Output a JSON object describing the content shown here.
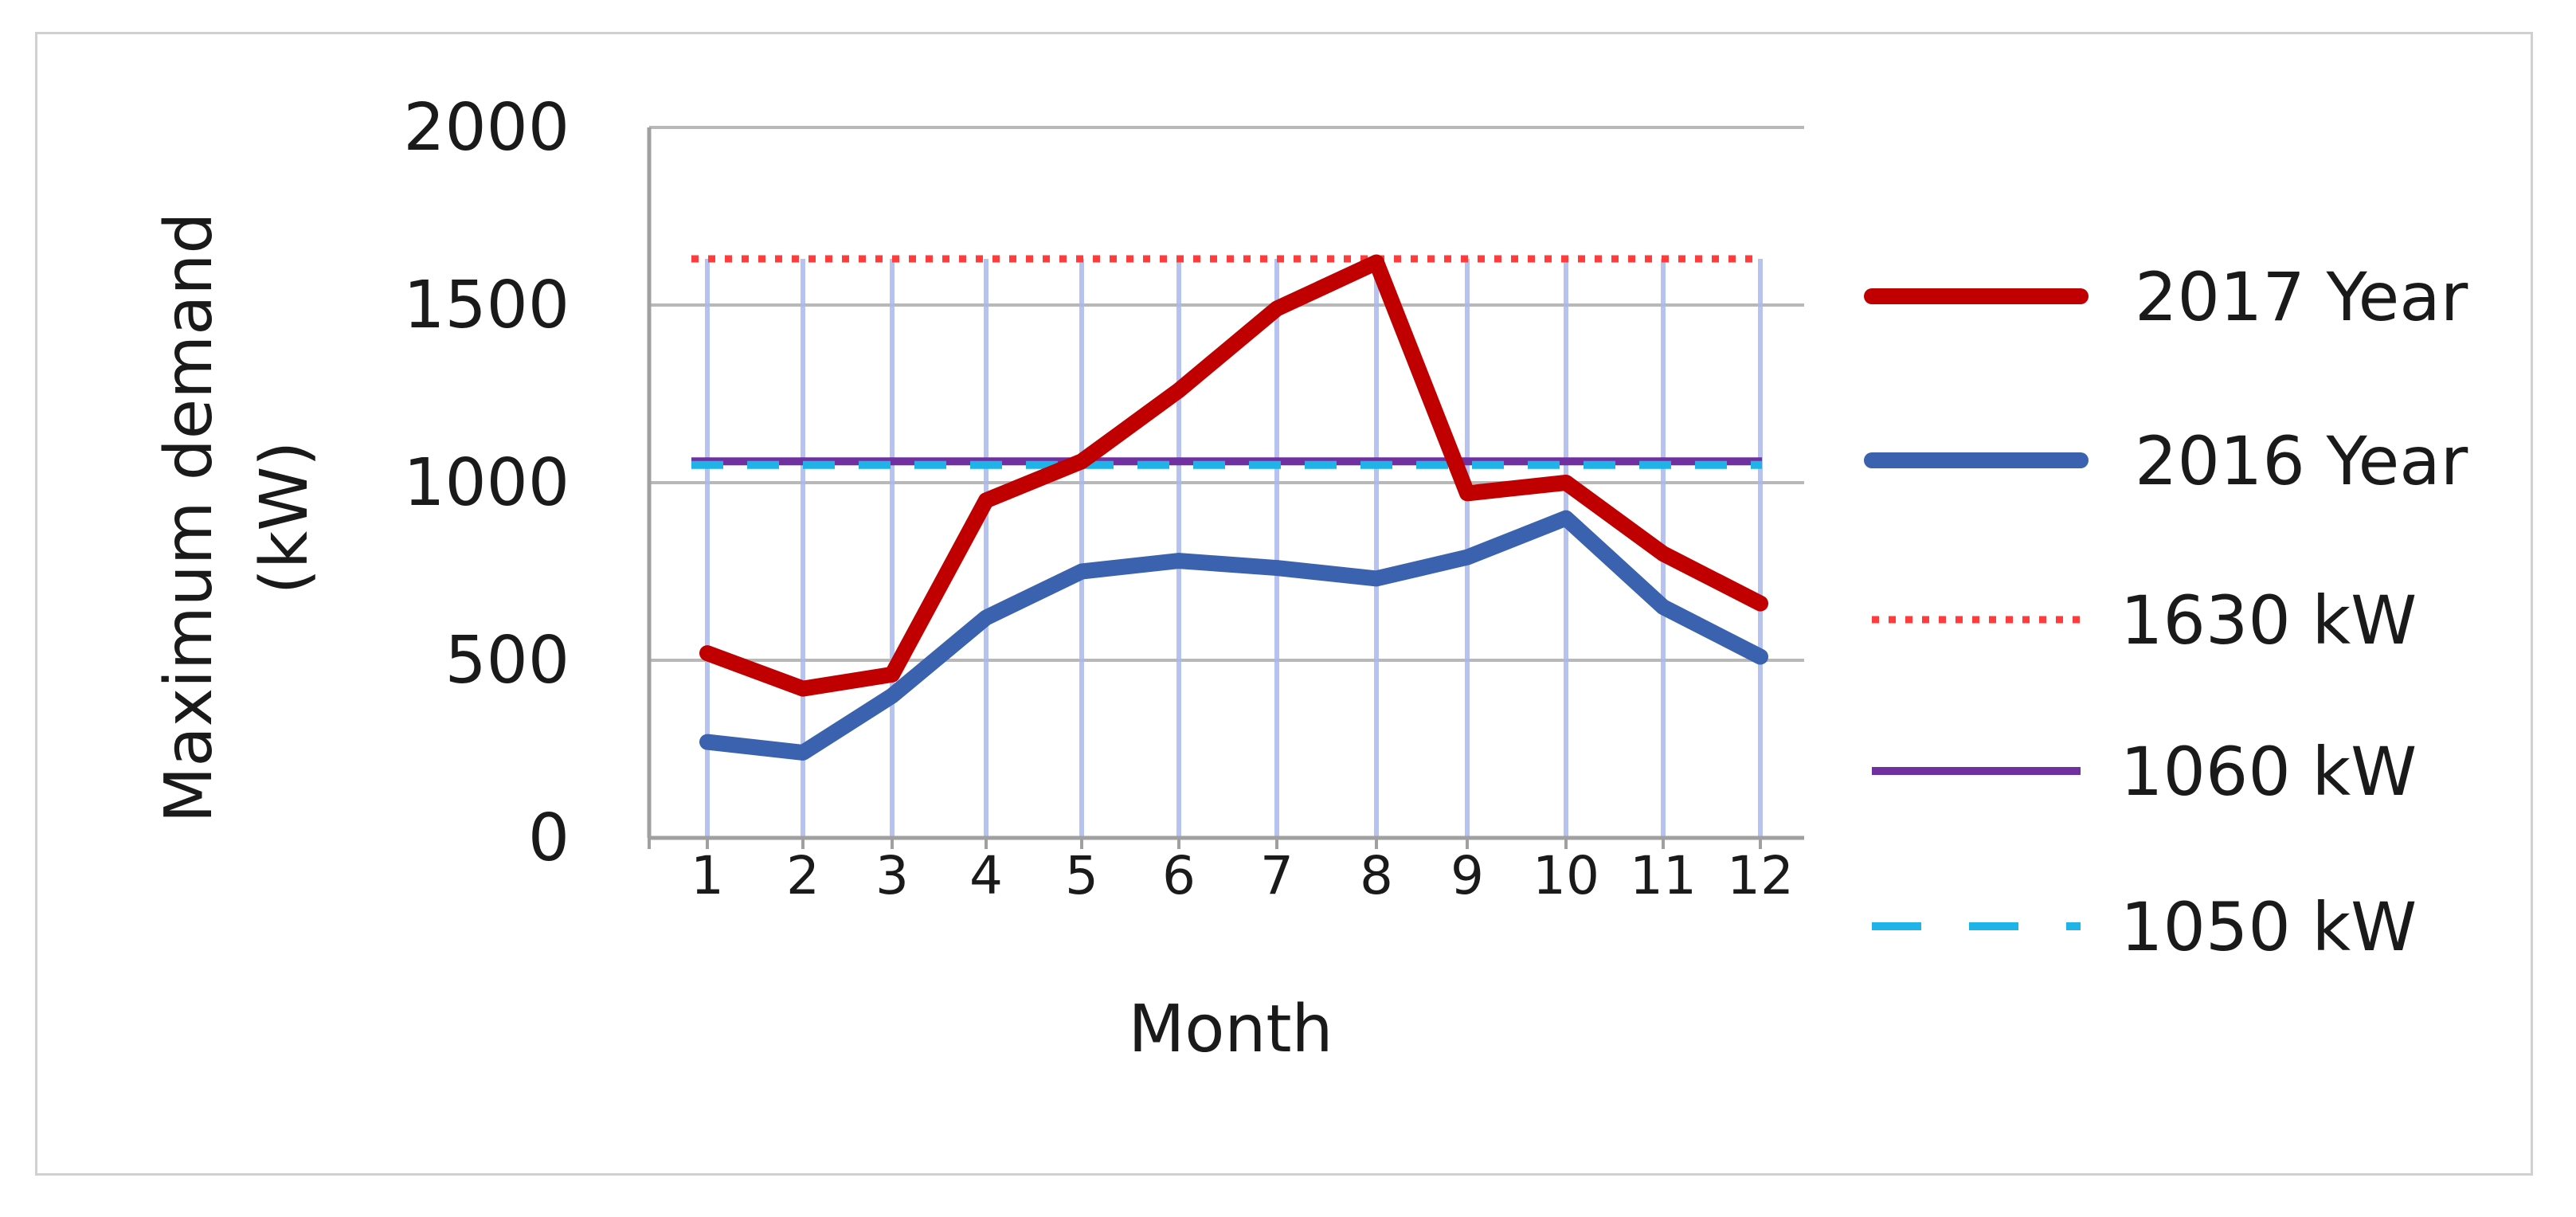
{
  "chart_data": {
    "type": "line",
    "xlabel": "Month",
    "ylabel_lines": [
      "Maximum demand",
      "(kW)"
    ],
    "categories": [
      "1",
      "2",
      "3",
      "4",
      "5",
      "6",
      "7",
      "8",
      "9",
      "10",
      "11",
      "12"
    ],
    "ylim": [
      0,
      2000
    ],
    "yticks": [
      0,
      500,
      1000,
      1500,
      2000
    ],
    "grid": "horizontal major + vertical month lines",
    "legend_position": "right",
    "series": [
      {
        "name": "2017 Year",
        "color": "#c00000",
        "style": "solid",
        "values": [
          520,
          420,
          460,
          950,
          1060,
          1260,
          1490,
          1620,
          970,
          1000,
          800,
          660
        ]
      },
      {
        "name": "2016 Year",
        "color": "#3a62ae",
        "style": "solid",
        "values": [
          270,
          240,
          400,
          620,
          750,
          780,
          760,
          730,
          790,
          900,
          650,
          510
        ]
      }
    ],
    "reference_lines": [
      {
        "name": "1630 kW",
        "value": 1630,
        "color": "#ff3b3b",
        "style": "dotted"
      },
      {
        "name": "1060 kW",
        "value": 1060,
        "color": "#7030a0",
        "style": "solid"
      },
      {
        "name": "1050 kW",
        "value": 1050,
        "color": "#1fb4e8",
        "style": "dashed"
      }
    ]
  }
}
